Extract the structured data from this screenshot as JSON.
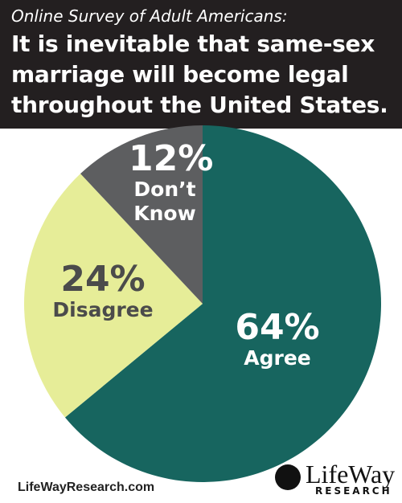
{
  "chart_data": {
    "type": "pie",
    "subtitle": "Online Survey of Adult Americans:",
    "title": "It is inevitable that same-sex marriage will become legal throughout the United States.",
    "categories": [
      "Agree",
      "Disagree",
      "Don’t Know"
    ],
    "values": [
      64,
      24,
      12
    ],
    "value_labels": [
      "64%",
      "24%",
      "12%"
    ],
    "colors": [
      "#17655f",
      "#e6ed98",
      "#5d5e60"
    ],
    "label_colors": [
      "#ffffff",
      "#4b4b4b",
      "#ffffff"
    ],
    "source": "LifeWayResearch.com",
    "brand": "LifeWay",
    "brand_sub": "RESEARCH"
  }
}
